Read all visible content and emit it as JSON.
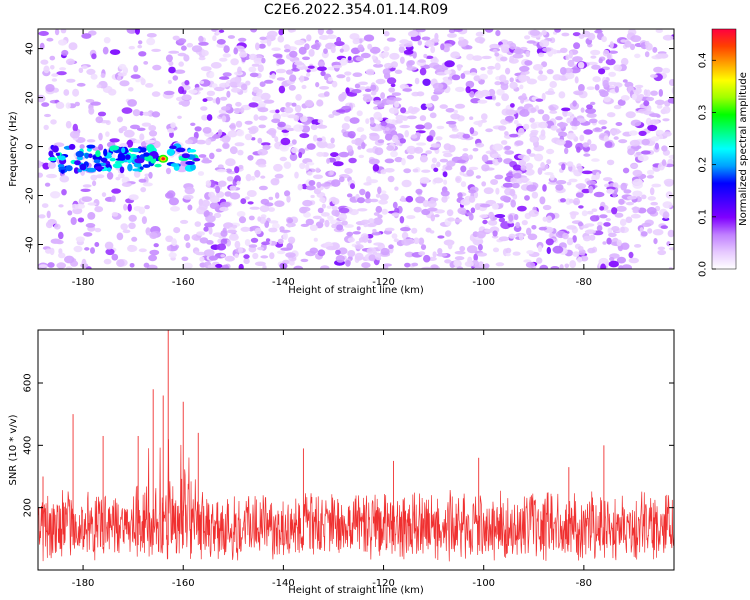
{
  "figure": {
    "title": "C2E6.2022.354.01.14.R09"
  },
  "colors": {
    "line": "#f03030",
    "colormap": [
      "#ffffff",
      "#e6c8ff",
      "#c080ff",
      "#8000ff",
      "#4000ff",
      "#0000ff",
      "#00a0ff",
      "#00ffff",
      "#00ff80",
      "#00ff00",
      "#a0ff00",
      "#ffff00",
      "#ffa000",
      "#ff4000",
      "#ff0040"
    ]
  },
  "chart_data": [
    {
      "type": "heatmap",
      "xlabel": "Height of straight line (km)",
      "ylabel": "Frequency (Hz)",
      "xlim": [
        -189,
        -62
      ],
      "ylim": [
        -50,
        48
      ],
      "xticks": [
        -180,
        -160,
        -140,
        -120,
        -100,
        -80
      ],
      "yticks": [
        -40,
        -20,
        0,
        20,
        40
      ],
      "features": {
        "noise_floor_amplitude": 0.07,
        "low_density_band_km": [
          -189,
          -157
        ],
        "gap_column_km": [
          -165,
          -163
        ],
        "signal_band": {
          "x_range_km": [
            -187,
            -157
          ],
          "frequency_hz": [
            -10,
            0
          ],
          "peak_amplitude": 0.45,
          "peak_at": {
            "x_km": -164,
            "frequency_hz": -5
          }
        }
      },
      "colorbar": {
        "label": "Normalized spectral amplitude",
        "range": [
          0.0,
          0.46
        ],
        "ticks": [
          0.0,
          0.1,
          0.2,
          0.3,
          0.4
        ]
      }
    },
    {
      "type": "line",
      "xlabel": "Height of straight line (km)",
      "ylabel": "SNR (10 * v/v)",
      "xlim": [
        -189,
        -62
      ],
      "ylim": [
        0,
        770
      ],
      "xticks": [
        -180,
        -160,
        -140,
        -120,
        -100,
        -80
      ],
      "yticks": [
        200,
        400,
        600
      ],
      "features": {
        "baseline_range": [
          80,
          260
        ],
        "spike_peaks": [
          {
            "x": -188,
            "y": 300
          },
          {
            "x": -182,
            "y": 500
          },
          {
            "x": -176,
            "y": 430
          },
          {
            "x": -169,
            "y": 430
          },
          {
            "x": -166,
            "y": 580
          },
          {
            "x": -164,
            "y": 560
          },
          {
            "x": -163,
            "y": 770
          },
          {
            "x": -160,
            "y": 540
          },
          {
            "x": -157,
            "y": 440
          },
          {
            "x": -136,
            "y": 390
          },
          {
            "x": -118,
            "y": 350
          },
          {
            "x": -101,
            "y": 360
          },
          {
            "x": -83,
            "y": 330
          },
          {
            "x": -76,
            "y": 400
          },
          {
            "x": -62,
            "y": 300
          }
        ]
      }
    }
  ]
}
